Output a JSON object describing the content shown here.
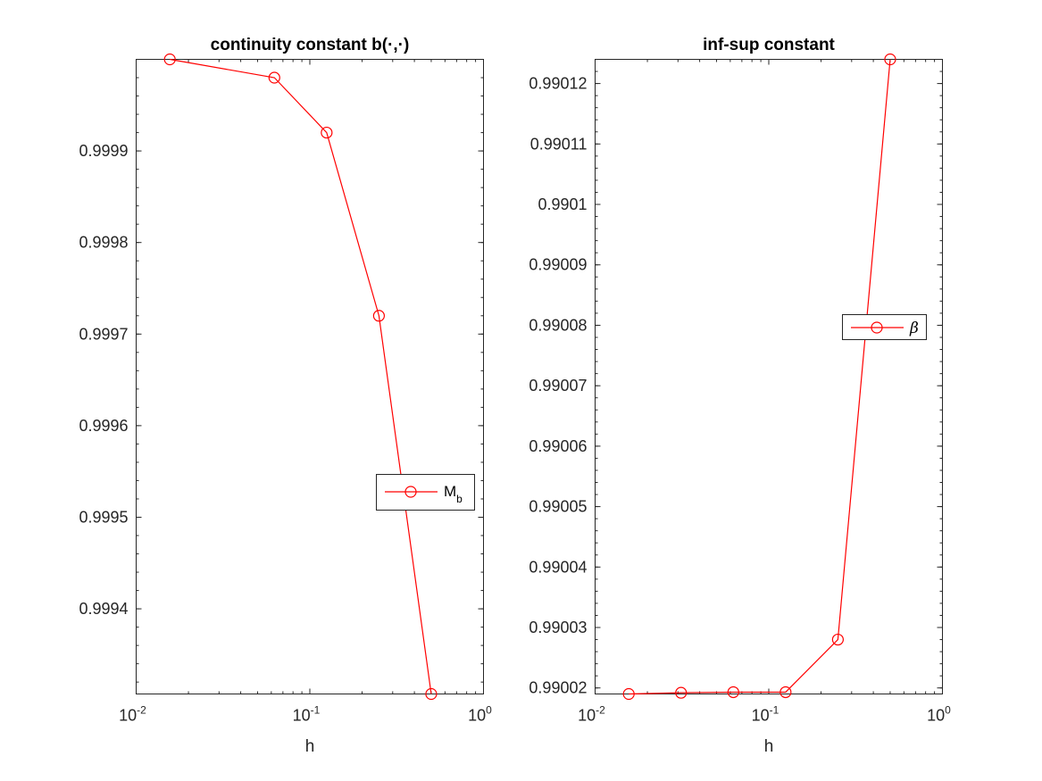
{
  "figure": {
    "background": "#ffffff"
  },
  "chart_data": [
    {
      "type": "line",
      "title": "continuity constant b(·,·)",
      "xlabel": "h",
      "ylabel": "",
      "xscale": "log",
      "xlim": [
        0.01,
        1
      ],
      "ylim": [
        0.999307,
        1.0
      ],
      "x_ticks": [
        {
          "base": "10",
          "exp": "-2"
        },
        {
          "base": "10",
          "exp": "-1"
        },
        {
          "base": "10",
          "exp": "0"
        }
      ],
      "y_ticks": [
        "0.9994",
        "0.9995",
        "0.9996",
        "0.9997",
        "0.9998",
        "0.9999"
      ],
      "y_tick_values": [
        0.9994,
        0.9995,
        0.9996,
        0.9997,
        0.9998,
        0.9999
      ],
      "grid": false,
      "legend_position": "right",
      "series": [
        {
          "name": "M",
          "name_subscript": "b",
          "color": "#ff0000",
          "marker": "circle",
          "x": [
            0.015625,
            0.0625,
            0.125,
            0.25,
            0.5
          ],
          "y": [
            1.0,
            0.99998,
            0.99992,
            0.99972,
            0.999307
          ]
        }
      ]
    },
    {
      "type": "line",
      "title": "inf-sup constant",
      "xlabel": "h",
      "ylabel": "",
      "xscale": "log",
      "xlim": [
        0.01,
        1
      ],
      "ylim": [
        0.990019,
        0.990124
      ],
      "x_ticks": [
        {
          "base": "10",
          "exp": "-2"
        },
        {
          "base": "10",
          "exp": "-1"
        },
        {
          "base": "10",
          "exp": "0"
        }
      ],
      "y_ticks": [
        "0.99002",
        "0.99003",
        "0.99004",
        "0.99005",
        "0.99006",
        "0.99007",
        "0.99008",
        "0.99009",
        "0.9901",
        "0.99011",
        "0.99012"
      ],
      "y_tick_values": [
        0.99002,
        0.99003,
        0.99004,
        0.99005,
        0.99006,
        0.99007,
        0.99008,
        0.99009,
        0.9901,
        0.99011,
        0.99012
      ],
      "grid": false,
      "legend_position": "right",
      "series": [
        {
          "name": "β",
          "color": "#ff0000",
          "marker": "circle",
          "x": [
            0.015625,
            0.03125,
            0.0625,
            0.125,
            0.25,
            0.5
          ],
          "y": [
            0.990019,
            0.9900192,
            0.9900193,
            0.9900193,
            0.990028,
            0.990124
          ]
        }
      ]
    }
  ]
}
